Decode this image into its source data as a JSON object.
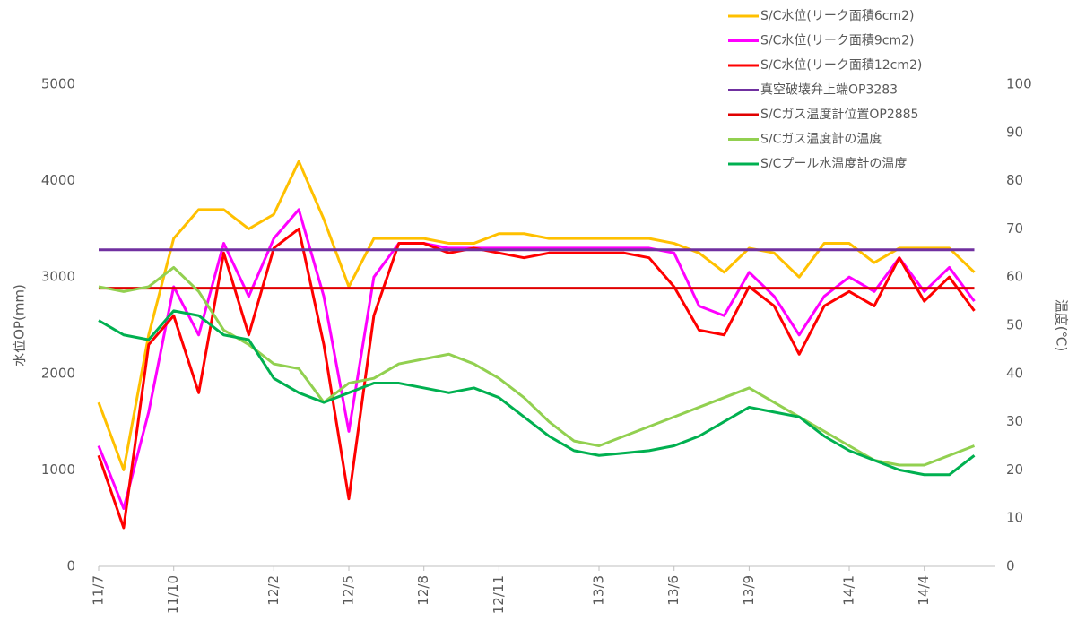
{
  "chart_data": {
    "type": "line",
    "categories": [
      "11/7",
      null,
      null,
      "11/10",
      null,
      null,
      null,
      "12/2",
      null,
      null,
      "12/5",
      null,
      null,
      "12/8",
      null,
      null,
      "12/11",
      null,
      null,
      null,
      "13/3",
      null,
      null,
      "13/6",
      null,
      null,
      "13/9",
      null,
      null,
      null,
      "14/1",
      null,
      null,
      "14/4",
      null,
      null
    ],
    "ylabel": "水位OP(mm)",
    "y2label": "温度(℃)",
    "ylim": [
      0,
      5000
    ],
    "yticks": [
      0,
      1000,
      2000,
      3000,
      4000,
      5000
    ],
    "y2lim": [
      0,
      100
    ],
    "y2ticks": [
      0,
      10,
      20,
      30,
      40,
      50,
      60,
      70,
      80,
      90,
      100
    ],
    "grid": false,
    "legend": "top-right",
    "series": [
      {
        "name": "S/C水位(リーク面積6cm2)",
        "color": "#ffc000",
        "values": [
          1700,
          1000,
          2400,
          3400,
          3700,
          3700,
          3500,
          3650,
          4200,
          3600,
          2900,
          3400,
          3400,
          3400,
          3350,
          3350,
          3450,
          3450,
          3400,
          3400,
          3400,
          3400,
          3400,
          3350,
          3250,
          3050,
          3300,
          3250,
          3000,
          3350,
          3350,
          3150,
          3300,
          3300,
          3300,
          3050
        ]
      },
      {
        "name": "S/C水位(リーク面積9cm2)",
        "color": "#ff00ff",
        "values": [
          1250,
          600,
          1600,
          2900,
          2400,
          3350,
          2800,
          3400,
          3700,
          2800,
          1400,
          3000,
          3350,
          3350,
          3300,
          3300,
          3300,
          3300,
          3300,
          3300,
          3300,
          3300,
          3300,
          3250,
          2700,
          2600,
          3050,
          2800,
          2400,
          2800,
          3000,
          2850,
          3200,
          2850,
          3100,
          2750
        ]
      },
      {
        "name": "S/C水位(リーク面積12cm2)",
        "color": "#ff0000",
        "values": [
          1150,
          400,
          2300,
          2600,
          1800,
          3250,
          2400,
          3300,
          3500,
          2300,
          700,
          2600,
          3350,
          3350,
          3250,
          3300,
          3250,
          3200,
          3250,
          3250,
          3250,
          3250,
          3200,
          2900,
          2450,
          2400,
          2900,
          2700,
          2200,
          2700,
          2850,
          2700,
          3200,
          2750,
          3000,
          2650
        ]
      },
      {
        "name": "真空破壊弁上端OP3283",
        "color": "#7030a0",
        "values": [
          3283,
          3283,
          3283,
          3283,
          3283,
          3283,
          3283,
          3283,
          3283,
          3283,
          3283,
          3283,
          3283,
          3283,
          3283,
          3283,
          3283,
          3283,
          3283,
          3283,
          3283,
          3283,
          3283,
          3283,
          3283,
          3283,
          3283,
          3283,
          3283,
          3283,
          3283,
          3283,
          3283,
          3283,
          3283,
          3283
        ]
      },
      {
        "name": "S/Cガス温度計位置OP2885",
        "color": "#e00000",
        "values": [
          2885,
          2885,
          2885,
          2885,
          2885,
          2885,
          2885,
          2885,
          2885,
          2885,
          2885,
          2885,
          2885,
          2885,
          2885,
          2885,
          2885,
          2885,
          2885,
          2885,
          2885,
          2885,
          2885,
          2885,
          2885,
          2885,
          2885,
          2885,
          2885,
          2885,
          2885,
          2885,
          2885,
          2885,
          2885,
          2885
        ]
      },
      {
        "name": "S/Cガス温度計の温度",
        "color": "#92d050",
        "axis": "y2",
        "values": [
          58,
          57,
          58,
          62,
          57,
          49,
          46,
          42,
          41,
          34,
          38,
          39,
          42,
          43,
          44,
          42,
          39,
          35,
          30,
          26,
          25,
          27,
          29,
          31,
          33,
          35,
          37,
          34,
          31,
          28,
          25,
          22,
          21,
          21,
          23,
          25
        ]
      },
      {
        "name": "S/Cプール水温度計の温度",
        "color": "#00b050",
        "axis": "y2",
        "values": [
          51,
          48,
          47,
          53,
          52,
          48,
          47,
          39,
          36,
          34,
          36,
          38,
          38,
          37,
          36,
          37,
          35,
          31,
          27,
          24,
          23,
          23.5,
          24,
          25,
          27,
          30,
          33,
          32,
          31,
          27,
          24,
          22,
          20,
          19,
          19,
          23
        ]
      }
    ]
  }
}
